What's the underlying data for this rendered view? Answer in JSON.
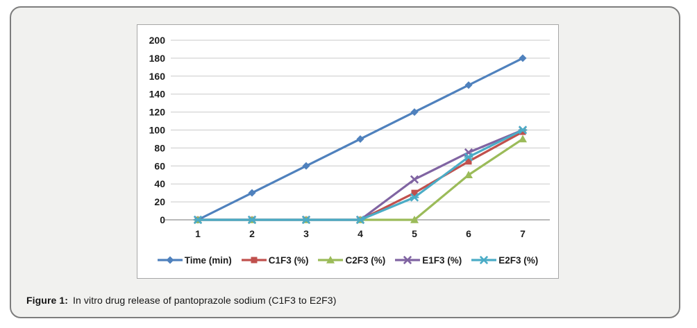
{
  "caption": {
    "label": "Figure 1:",
    "text": "In vitro drug release of pantoprazole sodium (C1F3 to E2F3)"
  },
  "chart_data": {
    "type": "line",
    "title": "",
    "xlabel": "",
    "ylabel": "",
    "x": [
      1,
      2,
      3,
      4,
      5,
      6,
      7
    ],
    "xticklabels": [
      "1",
      "2",
      "3",
      "4",
      "5",
      "6",
      "7"
    ],
    "yticks": [
      0,
      20,
      40,
      60,
      80,
      100,
      120,
      140,
      160,
      180,
      200
    ],
    "ylim": [
      0,
      200
    ],
    "grid": true,
    "legend_position": "bottom",
    "series": [
      {
        "name": "Time (min)",
        "marker": "diamond",
        "color": "#4F81BD",
        "values": [
          0,
          30,
          60,
          90,
          120,
          150,
          180
        ]
      },
      {
        "name": "C1F3 (%)",
        "marker": "square",
        "color": "#C0504D",
        "values": [
          0,
          0,
          0,
          0,
          30,
          65,
          98
        ]
      },
      {
        "name": "C2F3 (%)",
        "marker": "triangle",
        "color": "#9BBB59",
        "values": [
          0,
          0,
          0,
          0,
          0,
          50,
          90
        ]
      },
      {
        "name": "E1F3 (%)",
        "marker": "x",
        "color": "#8064A2",
        "values": [
          0,
          0,
          0,
          0,
          45,
          75,
          100
        ]
      },
      {
        "name": "E2F3 (%)",
        "marker": "star",
        "color": "#4BACC6",
        "values": [
          0,
          0,
          0,
          0,
          25,
          70,
          100
        ]
      }
    ]
  },
  "style": {
    "grid_color": "#c9c9c9",
    "axis_color": "#8f8f8f",
    "card_bg": "#f1f1ef",
    "card_border": "#7d7d7d",
    "panel_border": "#a6a6a6"
  }
}
